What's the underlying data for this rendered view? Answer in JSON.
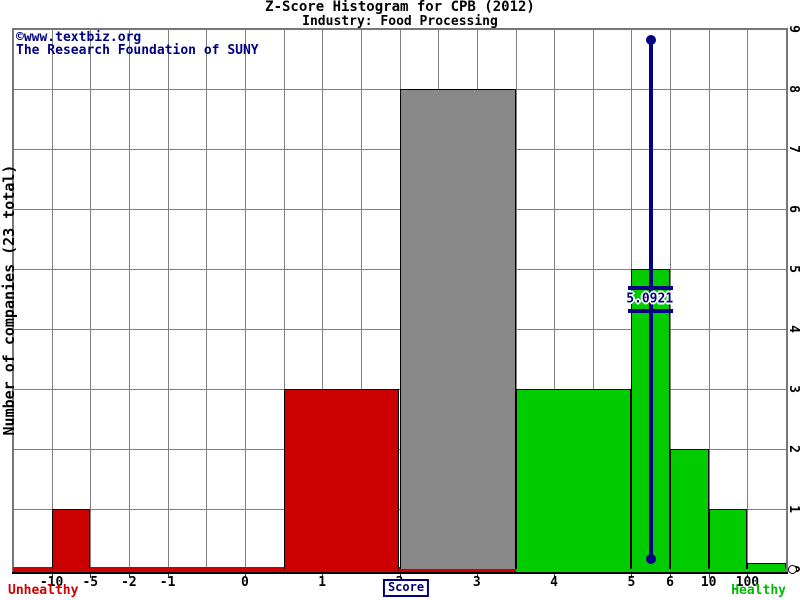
{
  "title": "Z-Score Histogram for CPB (2012)",
  "subtitle": "Industry: Food Processing",
  "watermark": {
    "line1": "©www.textbiz.org",
    "line2": "The Research Foundation of SUNY"
  },
  "colors": {
    "red": "#cc0000",
    "green": "#00cc00",
    "gray": "#888888",
    "navy": "#000080",
    "grid": "#808080",
    "border": "#777777"
  },
  "y_axis": {
    "label": "Number of companies (23 total)",
    "ticks": [
      "0",
      "1",
      "2",
      "3",
      "4",
      "5",
      "6",
      "7",
      "8",
      "9"
    ],
    "max": 9
  },
  "x_axis": {
    "axis_label": "Score",
    "zone_label_left": "Unhealthy",
    "zone_label_right": "Healthy",
    "gridline_count": 20,
    "ticks": [
      {
        "label": "-10",
        "k": 1
      },
      {
        "label": "-5",
        "k": 2
      },
      {
        "label": "-2",
        "k": 3
      },
      {
        "label": "-1",
        "k": 4
      },
      {
        "label": "0",
        "k": 6
      },
      {
        "label": "1",
        "k": 8
      },
      {
        "label": "2",
        "k": 10
      },
      {
        "label": "3",
        "k": 12
      },
      {
        "label": "4",
        "k": 14
      },
      {
        "label": "5",
        "k": 16
      },
      {
        "label": "6",
        "k": 17
      },
      {
        "label": "10",
        "k": 18
      },
      {
        "label": "100",
        "k": 19
      }
    ]
  },
  "marker": {
    "label": "5.0921",
    "value": 5.0921
  },
  "chart_data": {
    "type": "bar",
    "title": "Z-Score Histogram for CPB (2012)",
    "subtitle": "Industry: Food Processing",
    "xlabel": "Score",
    "ylabel": "Number of companies (23 total)",
    "ylim": [
      0,
      9
    ],
    "grid": true,
    "total_companies": 23,
    "company": "CPB",
    "year": 2012,
    "company_zscore": 5.0921,
    "x_ticks": [
      "-10",
      "-5",
      "-2",
      "-1",
      "0",
      "1",
      "2",
      "3",
      "4",
      "5",
      "6",
      "10",
      "100"
    ],
    "bins": [
      {
        "range": "-10 to -5",
        "count": 1,
        "zone": "unhealthy",
        "color": "red",
        "from_k": 1,
        "to_k": 2
      },
      {
        "range": "0.5 to 2",
        "count": 3,
        "zone": "unhealthy",
        "color": "red",
        "from_k": 7,
        "to_k": 10
      },
      {
        "range": "2 to 3.5",
        "count": 8,
        "zone": "grey-zone",
        "color": "gray",
        "from_k": 10,
        "to_k": 13
      },
      {
        "range": "3.5 to 5",
        "count": 3,
        "zone": "healthy",
        "color": "green",
        "from_k": 13,
        "to_k": 16
      },
      {
        "range": "5 to 6",
        "count": 5,
        "zone": "healthy",
        "color": "green",
        "from_k": 16,
        "to_k": 17
      },
      {
        "range": "6 to 10",
        "count": 2,
        "zone": "healthy",
        "color": "green",
        "from_k": 17,
        "to_k": 18
      },
      {
        "range": "10 to 100",
        "count": 1,
        "zone": "healthy",
        "color": "green",
        "from_k": 18,
        "to_k": 19
      },
      {
        "range": "> 100",
        "count": 0,
        "zone": "healthy",
        "color": "green",
        "from_k": 19,
        "to_k": 20
      }
    ],
    "baseline_zones": [
      {
        "from_k": 0,
        "to_k": 13,
        "color": "red"
      },
      {
        "from_k": 13,
        "to_k": 20,
        "color": "green"
      }
    ],
    "marker_bin_center_between_k": [
      16,
      17
    ]
  }
}
